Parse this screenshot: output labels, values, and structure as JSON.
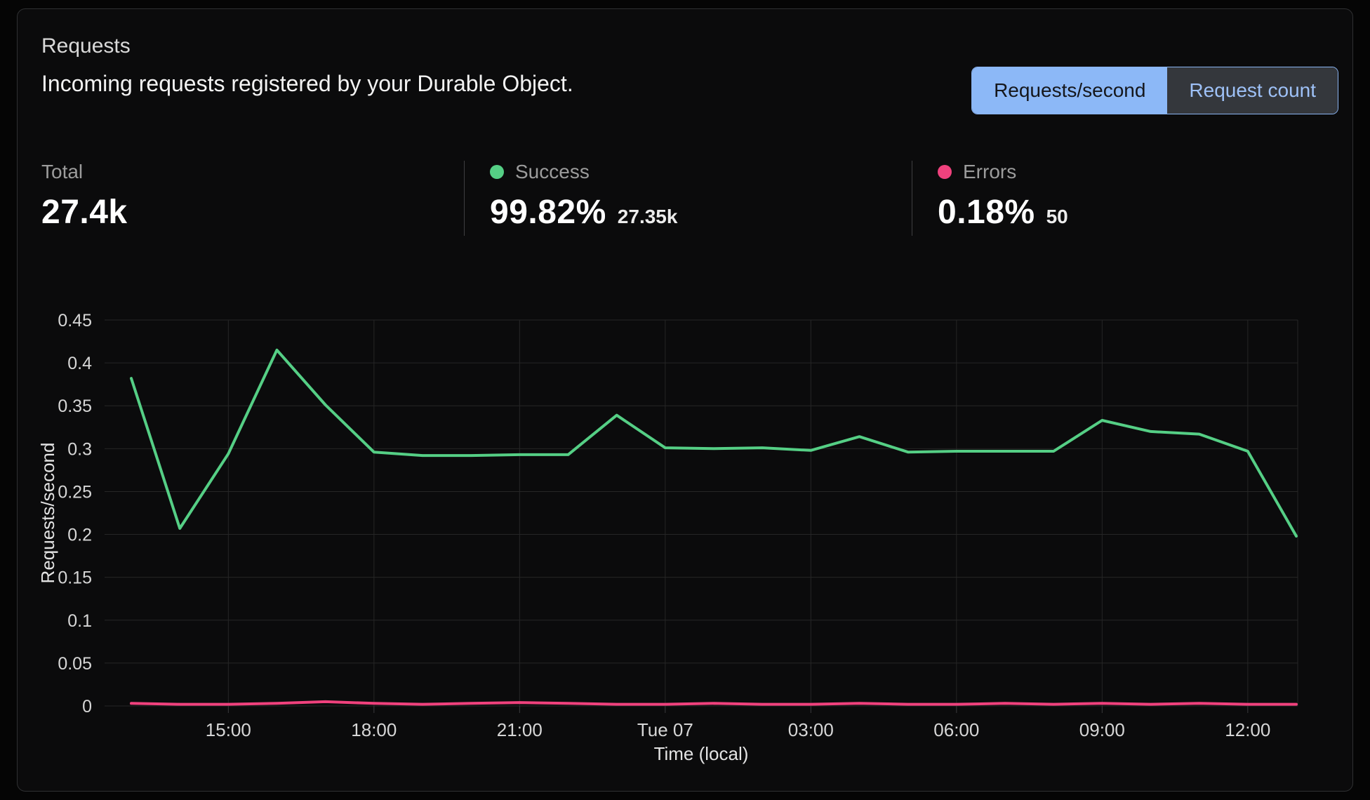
{
  "header": {
    "title": "Requests",
    "subtitle": "Incoming requests registered by your Durable Object.",
    "view_toggle": {
      "options": [
        {
          "label": "Requests/second",
          "active": true
        },
        {
          "label": "Request count",
          "active": false
        }
      ]
    }
  },
  "stats": [
    {
      "label": "Total",
      "value": "27.4k",
      "secondary": "",
      "dot_color": ""
    },
    {
      "label": "Success",
      "value": "99.82%",
      "secondary": "27.35k",
      "dot_color": "#55cf85"
    },
    {
      "label": "Errors",
      "value": "0.18%",
      "secondary": "50",
      "dot_color": "#f0417d"
    }
  ],
  "colors": {
    "accent_blue": "#8cb8f7",
    "success_green": "#55cf85",
    "error_pink": "#f0417d",
    "grid": "#262626",
    "tick_text": "#d6d6d6",
    "axis_text": "#e3e3e3"
  },
  "chart_data": {
    "type": "line",
    "title": "Requests",
    "xlabel": "Time (local)",
    "ylabel": "Requests/second",
    "ylim": [
      0,
      0.45
    ],
    "grid": true,
    "legend_position": "none",
    "y_ticks": [
      0,
      0.05,
      0.1,
      0.15,
      0.2,
      0.25,
      0.3,
      0.35,
      0.4,
      0.45
    ],
    "x": [
      "13:00",
      "14:00",
      "15:00",
      "16:00",
      "17:00",
      "18:00",
      "19:00",
      "20:00",
      "21:00",
      "22:00",
      "23:00",
      "Tue 07",
      "01:00",
      "02:00",
      "03:00",
      "04:00",
      "05:00",
      "06:00",
      "07:00",
      "08:00",
      "09:00",
      "10:00",
      "11:00",
      "12:00",
      "13:00"
    ],
    "x_ticks": [
      {
        "i": 2,
        "label": "15:00"
      },
      {
        "i": 5,
        "label": "18:00"
      },
      {
        "i": 8,
        "label": "21:00"
      },
      {
        "i": 11,
        "label": "Tue 07"
      },
      {
        "i": 14,
        "label": "03:00"
      },
      {
        "i": 17,
        "label": "06:00"
      },
      {
        "i": 20,
        "label": "09:00"
      },
      {
        "i": 23,
        "label": "12:00"
      }
    ],
    "series": [
      {
        "name": "Success",
        "color": "#55cf85",
        "values": [
          0.382,
          0.207,
          0.294,
          0.415,
          0.351,
          0.296,
          0.292,
          0.292,
          0.293,
          0.293,
          0.339,
          0.301,
          0.3,
          0.301,
          0.298,
          0.314,
          0.296,
          0.297,
          0.297,
          0.297,
          0.333,
          0.32,
          0.317,
          0.297,
          0.198
        ]
      },
      {
        "name": "Errors",
        "color": "#f0417d",
        "values": [
          0.003,
          0.002,
          0.002,
          0.003,
          0.005,
          0.003,
          0.002,
          0.003,
          0.004,
          0.003,
          0.002,
          0.002,
          0.003,
          0.002,
          0.002,
          0.003,
          0.002,
          0.002,
          0.003,
          0.002,
          0.003,
          0.002,
          0.003,
          0.002,
          0.002
        ]
      }
    ]
  }
}
